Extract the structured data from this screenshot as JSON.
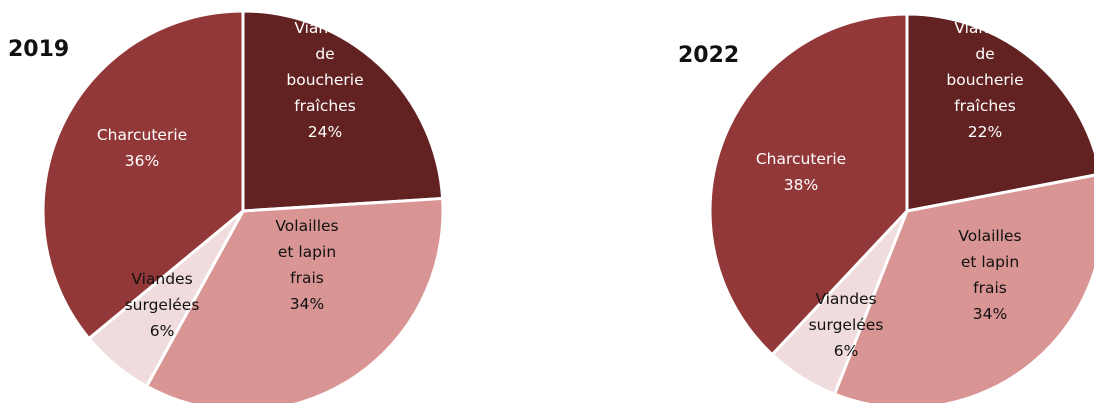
{
  "chart_data": [
    {
      "type": "pie",
      "title": "2019",
      "categories": [
        "Viandes de boucherie fraîches",
        "Volailles et lapin frais",
        "Viandes surgelées",
        "Charcuterie"
      ],
      "values": [
        24,
        34,
        6,
        36
      ],
      "unit": "%",
      "colors": [
        "#632222",
        "#d99594",
        "#f0dcdc",
        "#933838"
      ],
      "label_lines": [
        [
          "Viandes",
          "de",
          "boucherie",
          "fraîches",
          "24%"
        ],
        [
          "Volailles",
          "et lapin",
          "frais",
          "34%"
        ],
        [
          "Viandes",
          "surgelées",
          "6%"
        ],
        [
          "Charcuterie",
          "36%"
        ]
      ],
      "label_colors": [
        "#ffffff",
        "#111111",
        "#111111",
        "#ffffff"
      ]
    },
    {
      "type": "pie",
      "title": "2022",
      "categories": [
        "Viandes de boucherie fraîches",
        "Volailles et lapin frais",
        "Viandes surgelées",
        "Charcuterie"
      ],
      "values": [
        22,
        34,
        6,
        38
      ],
      "unit": "%",
      "colors": [
        "#632222",
        "#d99594",
        "#f0dcdc",
        "#933838"
      ],
      "label_lines": [
        [
          "Viandes",
          "de",
          "boucherie",
          "fraîches",
          "22%"
        ],
        [
          "Volailles",
          "et lapin",
          "frais",
          "34%"
        ],
        [
          "Viandes",
          "surgelées",
          "6%"
        ],
        [
          "Charcuterie",
          "38%"
        ]
      ],
      "label_colors": [
        "#ffffff",
        "#111111",
        "#111111",
        "#ffffff"
      ]
    }
  ]
}
